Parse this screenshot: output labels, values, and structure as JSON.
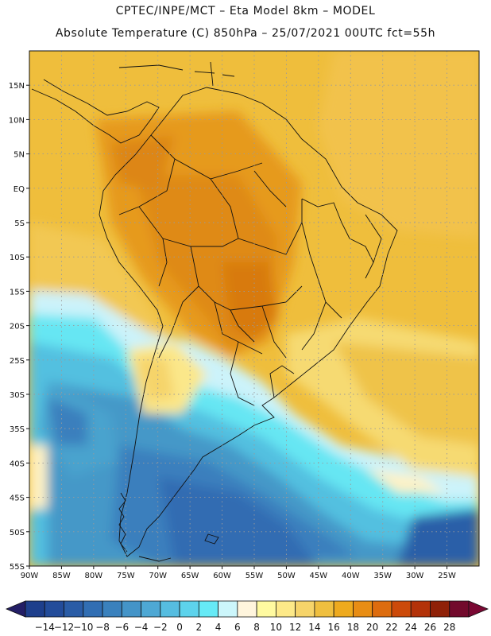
{
  "title": {
    "line1": "CPTEC/INPE/MCT –  Eta Model 8km – MODEL",
    "line2": "Absolute Temperature (C) 850hPa – 25/07/2021 00UTC fct=55h"
  },
  "map": {
    "lon_range": [
      -90,
      -20
    ],
    "lat_range": [
      -55,
      20
    ],
    "lat_ticks": [
      {
        "value": 15,
        "label": "15N"
      },
      {
        "value": 10,
        "label": "10N"
      },
      {
        "value": 5,
        "label": "5N"
      },
      {
        "value": 0,
        "label": "EQ"
      },
      {
        "value": -5,
        "label": "5S"
      },
      {
        "value": -10,
        "label": "10S"
      },
      {
        "value": -15,
        "label": "15S"
      },
      {
        "value": -20,
        "label": "20S"
      },
      {
        "value": -25,
        "label": "25S"
      },
      {
        "value": -30,
        "label": "30S"
      },
      {
        "value": -35,
        "label": "35S"
      },
      {
        "value": -40,
        "label": "40S"
      },
      {
        "value": -45,
        "label": "45S"
      },
      {
        "value": -50,
        "label": "50S"
      },
      {
        "value": -55,
        "label": "55S"
      }
    ],
    "lon_ticks": [
      {
        "value": -90,
        "label": "90W"
      },
      {
        "value": -85,
        "label": "85W"
      },
      {
        "value": -80,
        "label": "80W"
      },
      {
        "value": -75,
        "label": "75W"
      },
      {
        "value": -70,
        "label": "70W"
      },
      {
        "value": -65,
        "label": "65W"
      },
      {
        "value": -60,
        "label": "60W"
      },
      {
        "value": -55,
        "label": "55W"
      },
      {
        "value": -50,
        "label": "50W"
      },
      {
        "value": -45,
        "label": "45W"
      },
      {
        "value": -40,
        "label": "40W"
      },
      {
        "value": -35,
        "label": "35W"
      },
      {
        "value": -30,
        "label": "30W"
      },
      {
        "value": -25,
        "label": "25W"
      }
    ],
    "gridlines": "dotted, every 5 degrees"
  },
  "colorbar": {
    "labels": [
      "-14",
      "-12",
      "-10",
      "-8",
      "-6",
      "-4",
      "-2",
      "0",
      "2",
      "4",
      "6",
      "8",
      "10",
      "12",
      "14",
      "16",
      "18",
      "20",
      "22",
      "24",
      "26",
      "28"
    ],
    "colors": [
      "#1e3f8c",
      "#234c9a",
      "#2a5ca6",
      "#316eb3",
      "#3a81bd",
      "#4494c8",
      "#4ea8d4",
      "#56bde0",
      "#5dd3ec",
      "#66eaf6",
      "#ccf6fb",
      "#fff5dd",
      "#fffaa0",
      "#fde988",
      "#f6d46a",
      "#efbf3f",
      "#eeaa1e",
      "#e88d14",
      "#dd6c0e",
      "#cc4a0a",
      "#b33209",
      "#8f2108",
      "#720a2c"
    ],
    "left_end_color": "#231e66",
    "right_end_color": "#7a0833"
  }
}
